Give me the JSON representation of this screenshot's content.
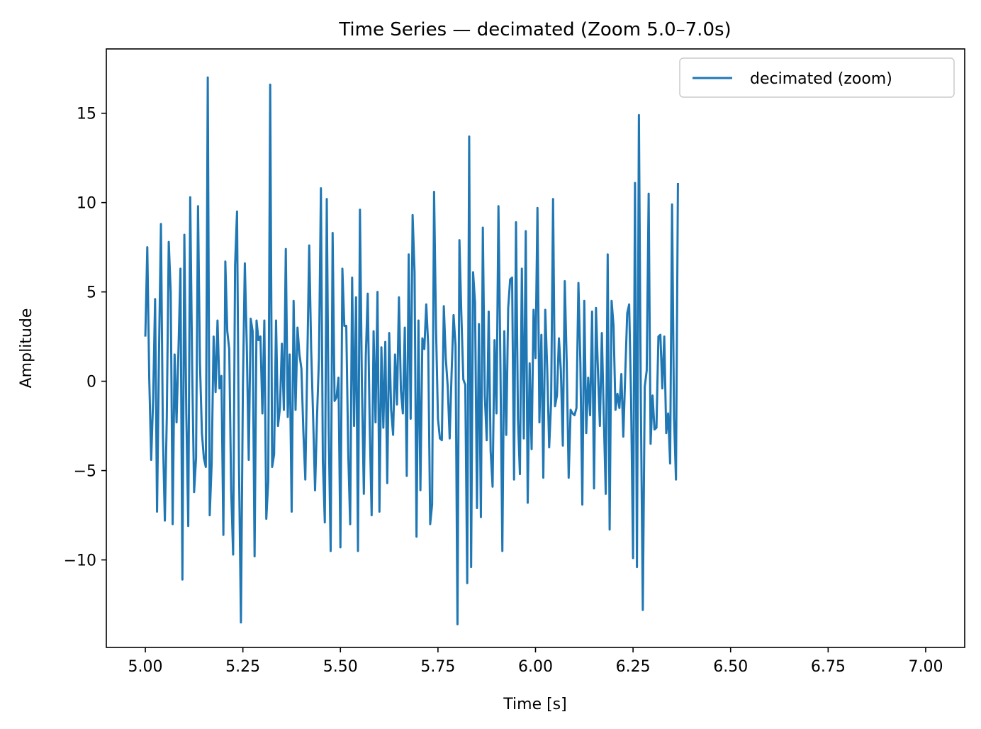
{
  "chart_data": {
    "type": "line",
    "title": "Time Series — decimated (Zoom 5.0–7.0s)",
    "xlabel": "Time [s]",
    "ylabel": "Amplitude",
    "xlim": [
      4.9,
      7.1
    ],
    "ylim": [
      -14.9,
      18.6
    ],
    "xticks": [
      5.0,
      5.25,
      5.5,
      5.75,
      6.0,
      6.25,
      6.5,
      6.75,
      7.0
    ],
    "xtick_labels": [
      "5.00",
      "5.25",
      "5.50",
      "5.75",
      "6.00",
      "6.25",
      "6.50",
      "6.75",
      "7.00"
    ],
    "yticks": [
      -10,
      -5,
      0,
      5,
      10,
      15
    ],
    "ytick_labels": [
      "−10",
      "−5",
      "0",
      "5",
      "10",
      "15"
    ],
    "grid": false,
    "legend_position": "top-right",
    "colors": {
      "series": "#1f77b4",
      "legend_border": "#cccccc"
    },
    "series": [
      {
        "name": "decimated (zoom)",
        "x_start": 5.0,
        "x_step": 0.005,
        "values": [
          2.5,
          7.5,
          0.2,
          -4.4,
          -1.0,
          4.6,
          -7.3,
          1.5,
          8.8,
          -3.0,
          -7.8,
          -2.0,
          7.8,
          5.0,
          -8.0,
          1.5,
          -2.3,
          1.8,
          6.3,
          -11.1,
          8.2,
          -1.8,
          -8.1,
          10.3,
          0.8,
          -6.2,
          -4.3,
          9.8,
          1.0,
          -2.9,
          -4.3,
          -4.8,
          17.0,
          -7.5,
          -4.6,
          2.5,
          -0.6,
          3.4,
          -0.4,
          0.3,
          -8.6,
          6.7,
          2.8,
          1.8,
          -6.1,
          -9.7,
          6.5,
          9.5,
          -4.7,
          -13.5,
          -0.4,
          6.6,
          2.0,
          -4.4,
          3.5,
          2.8,
          -9.8,
          3.4,
          2.3,
          2.5,
          -1.8,
          3.4,
          -7.7,
          -5.6,
          16.6,
          -4.8,
          -4.1,
          3.4,
          -2.5,
          -1.5,
          2.1,
          -1.6,
          7.4,
          -2.0,
          1.5,
          -7.3,
          4.5,
          -1.6,
          3.0,
          1.5,
          0.7,
          -2.8,
          -5.5,
          1.0,
          7.6,
          1.8,
          -2.0,
          -6.1,
          -2.0,
          1.3,
          10.8,
          -4.5,
          -7.9,
          10.2,
          -2.8,
          -9.5,
          8.3,
          -1.1,
          -0.9,
          0.2,
          -9.3,
          6.3,
          3.1,
          3.1,
          -4.0,
          -8.0,
          5.8,
          -2.5,
          4.7,
          -9.5,
          9.6,
          -0.1,
          -6.3,
          1.4,
          4.9,
          -2.4,
          -7.5,
          2.8,
          -2.3,
          5.0,
          -7.3,
          1.9,
          -2.6,
          2.2,
          -5.7,
          2.7,
          -1.6,
          -3.0,
          1.5,
          -1.3,
          4.7,
          -0.5,
          -1.8,
          3.0,
          -5.3,
          7.1,
          -2.1,
          9.3,
          6.1,
          -8.7,
          3.4,
          -6.1,
          2.4,
          1.8,
          4.3,
          2.0,
          -8.0,
          -6.9,
          10.6,
          3.0,
          -2.1,
          -3.2,
          -3.3,
          4.2,
          1.3,
          -0.3,
          -3.2,
          0.5,
          3.7,
          2.0,
          -13.6,
          7.9,
          3.7,
          0.1,
          -0.2,
          -11.3,
          13.7,
          -10.4,
          6.1,
          4.4,
          -7.1,
          3.2,
          -7.6,
          8.6,
          -0.8,
          -3.3,
          3.9,
          -3.9,
          -5.9,
          2.3,
          -1.8,
          9.8,
          1.0,
          -9.5,
          2.8,
          -3.0,
          4.1,
          5.7,
          5.8,
          -5.5,
          8.9,
          -2.1,
          -5.2,
          6.3,
          -3.2,
          8.4,
          -6.8,
          1.0,
          -3.8,
          4.0,
          1.3,
          9.7,
          -2.3,
          2.6,
          -5.4,
          4.0,
          0.7,
          -3.7,
          -1.2,
          10.2,
          -1.4,
          -0.8,
          2.4,
          0.6,
          -3.6,
          5.6,
          1.0,
          -5.4,
          -1.6,
          -1.8,
          -1.9,
          -1.5,
          5.5,
          1.0,
          -6.9,
          4.5,
          -2.9,
          0.2,
          -1.9,
          3.9,
          -6.0,
          4.1,
          0.6,
          -2.5,
          2.7,
          -2.0,
          -6.3,
          7.1,
          -8.3,
          4.5,
          3.1,
          -1.6,
          -0.7,
          -1.5,
          0.4,
          -3.1,
          0.4,
          3.8,
          4.3,
          -1.0,
          -9.9,
          11.1,
          -10.4,
          14.9,
          -1.2,
          -12.8,
          -0.3,
          0.6,
          10.5,
          -3.5,
          -0.8,
          -2.7,
          -2.6,
          2.5,
          2.6,
          -0.4,
          2.5,
          -2.9,
          -1.8,
          -4.6,
          9.9,
          -2.0,
          -5.5,
          11.1
        ]
      }
    ]
  }
}
